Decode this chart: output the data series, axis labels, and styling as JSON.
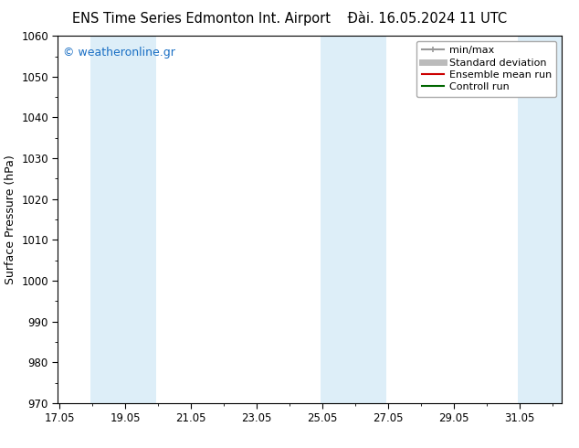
{
  "title_left": "ENS Time Series Edmonton Int. Airport",
  "title_right": "Đài. 16.05.2024 11 UTC",
  "ylabel": "Surface Pressure (hPa)",
  "ylim": [
    970,
    1060
  ],
  "yticks": [
    970,
    980,
    990,
    1000,
    1010,
    1020,
    1030,
    1040,
    1050,
    1060
  ],
  "xlim_start": 17.0,
  "xlim_end": 32.333,
  "xticks": [
    17.05,
    19.05,
    21.05,
    23.05,
    25.05,
    27.05,
    29.05,
    31.05
  ],
  "xlabel_labels": [
    "17.05",
    "19.05",
    "21.05",
    "23.05",
    "25.05",
    "27.05",
    "29.05",
    "31.05"
  ],
  "shaded_bands": [
    {
      "x_start": 18.0,
      "x_end": 20.0
    },
    {
      "x_start": 25.0,
      "x_end": 27.0
    },
    {
      "x_start": 31.0,
      "x_end": 32.5
    }
  ],
  "shade_color": "#ddeef8",
  "watermark": "© weatheronline.gr",
  "watermark_color": "#1a6fc4",
  "legend_entries": [
    {
      "label": "min/max",
      "color": "#999999",
      "lw": 1.5
    },
    {
      "label": "Standard deviation",
      "color": "#bbbbbb",
      "lw": 5
    },
    {
      "label": "Ensemble mean run",
      "color": "#cc0000",
      "lw": 1.5
    },
    {
      "label": "Controll run",
      "color": "#006600",
      "lw": 1.5
    }
  ],
  "bg_color": "#ffffff",
  "plot_bg_color": "#ffffff",
  "border_color": "#000000",
  "tick_color": "#000000",
  "title_fontsize": 10.5,
  "axis_label_fontsize": 9,
  "tick_fontsize": 8.5,
  "watermark_fontsize": 9,
  "legend_fontsize": 8
}
